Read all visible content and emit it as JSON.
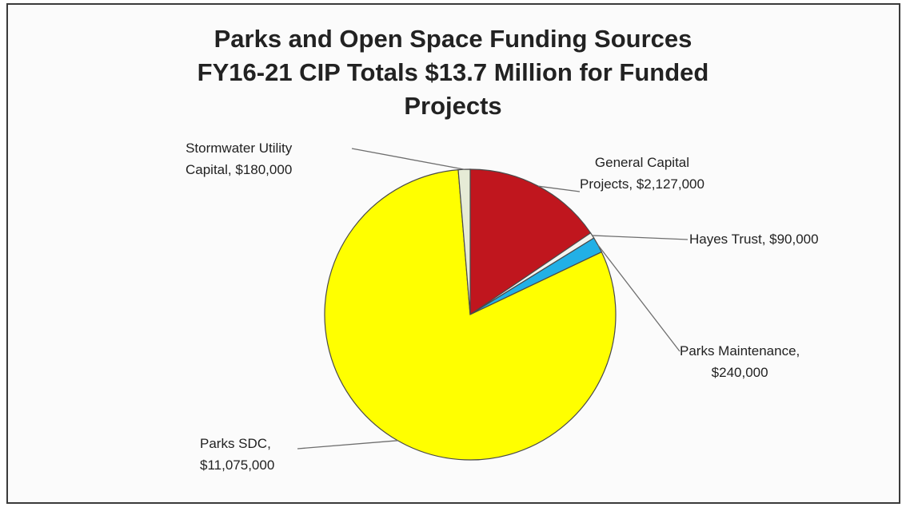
{
  "chart_data": {
    "type": "pie",
    "title_lines": [
      "Parks and Open Space Funding Sources",
      "FY16-21 CIP Totals $13.7 Million for Funded",
      "Projects"
    ],
    "slices": [
      {
        "name": "General Capital Projects",
        "value": 2127000,
        "color": "#c0161e",
        "label_lines": [
          "General Capital",
          "Projects, $2,127,000"
        ]
      },
      {
        "name": "Hayes Trust",
        "value": 90000,
        "color": "#f4f4f0",
        "label_lines": [
          "Hayes Trust, $90,000"
        ]
      },
      {
        "name": "Parks Maintenance",
        "value": 240000,
        "color": "#22b0e6",
        "label_lines": [
          "Parks Maintenance,",
          "$240,000"
        ]
      },
      {
        "name": "Parks SDC",
        "value": 11075000,
        "color": "#ffff00",
        "label_lines": [
          "Parks SDC,",
          "$11,075,000"
        ]
      },
      {
        "name": "Stormwater Utility Capital",
        "value": 180000,
        "color": "#e6ebd6",
        "label_lines": [
          "Stormwater Utility",
          "Capital, $180,000"
        ]
      }
    ],
    "start_angle_deg": 0,
    "direction": "clockwise",
    "legend": "none"
  }
}
